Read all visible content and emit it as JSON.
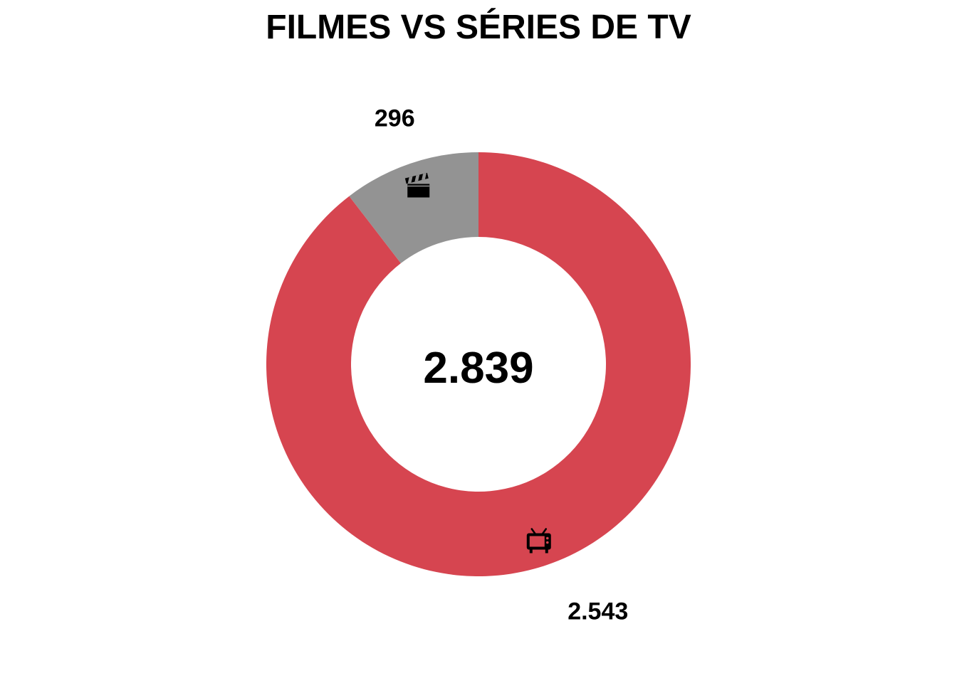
{
  "chart_data": {
    "type": "pie",
    "variant": "donut",
    "title": "FILMES VS SÉRIES DE TV",
    "total_label": "2.839",
    "total": 2839,
    "slices": [
      {
        "value": 2543,
        "label": "2.543",
        "color": "#d64550",
        "icon": "tv-icon"
      },
      {
        "value": 296,
        "label": "296",
        "color": "#939393",
        "icon": "clapperboard-icon"
      }
    ]
  }
}
